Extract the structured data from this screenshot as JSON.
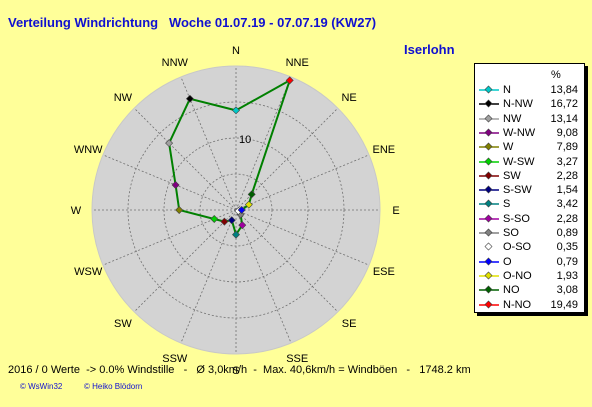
{
  "header": {
    "title": "Verteilung Windrichtung   Woche 01.07.19 - 07.07.19 (KW27)",
    "station": "Iserlohn"
  },
  "footer": {
    "stats": "2016 / 0 Werte  -> 0.0% Windstille   -   Ø 3,0km/h  -  Max. 40,6km/h = Windböen   -   1748.2 km",
    "credit_left": "© WsWin32",
    "credit_right": "© Heiko Blödorn"
  },
  "colors": {
    "background": "#ffff99",
    "polar_fill": "#d3d3d3",
    "trace": "#008000",
    "title": "#1010d0"
  },
  "chart_data": {
    "type": "polar-line",
    "title": "Verteilung Windrichtung   Woche 01.07.19 - 07.07.19 (KW27)",
    "rlim": [
      0,
      20
    ],
    "ring_label": "10",
    "ring_label_value": 10,
    "grid": true,
    "legend_placement": "right",
    "legend_unit": "%",
    "directions": [
      "N",
      "NNE",
      "NE",
      "ENE",
      "E",
      "ESE",
      "SE",
      "SSE",
      "S",
      "SSW",
      "SW",
      "WSW",
      "W",
      "WNW",
      "NW",
      "NNW"
    ],
    "series": [
      {
        "label": "N",
        "value": 13.84,
        "value_text": "13,84",
        "angle": 0,
        "color": "#00c8c8"
      },
      {
        "label": "N-NW",
        "value": 16.72,
        "value_text": "16,72",
        "angle": 337.5,
        "color": "#000000"
      },
      {
        "label": "NW",
        "value": 13.14,
        "value_text": "13,14",
        "angle": 315,
        "color": "#a0a0a0"
      },
      {
        "label": "W-NW",
        "value": 9.08,
        "value_text": "9,08",
        "angle": 292.5,
        "color": "#800080"
      },
      {
        "label": "W",
        "value": 7.89,
        "value_text": "7,89",
        "angle": 270,
        "color": "#808000"
      },
      {
        "label": "W-SW",
        "value": 3.27,
        "value_text": "3,27",
        "angle": 247.5,
        "color": "#00d000"
      },
      {
        "label": "SW",
        "value": 2.28,
        "value_text": "2,28",
        "angle": 225,
        "color": "#800000"
      },
      {
        "label": "S-SW",
        "value": 1.54,
        "value_text": "1,54",
        "angle": 202.5,
        "color": "#000080"
      },
      {
        "label": "S",
        "value": 3.42,
        "value_text": "3,42",
        "angle": 180,
        "color": "#008080"
      },
      {
        "label": "S-SO",
        "value": 2.28,
        "value_text": "2,28",
        "angle": 157.5,
        "color": "#a000a0"
      },
      {
        "label": "SO",
        "value": 0.89,
        "value_text": "0,89",
        "angle": 135,
        "color": "#808080"
      },
      {
        "label": "O-SO",
        "value": 0.35,
        "value_text": "0,35",
        "angle": 112.5,
        "color": "#ffffff"
      },
      {
        "label": "O",
        "value": 0.79,
        "value_text": "0,79",
        "angle": 90,
        "color": "#0000ff"
      },
      {
        "label": "O-NO",
        "value": 1.93,
        "value_text": "1,93",
        "angle": 67.5,
        "color": "#e0e000"
      },
      {
        "label": "NO",
        "value": 3.08,
        "value_text": "3,08",
        "angle": 45,
        "color": "#006000"
      },
      {
        "label": "N-NO",
        "value": 19.49,
        "value_text": "19,49",
        "angle": 22.5,
        "color": "#ff0000"
      }
    ]
  }
}
